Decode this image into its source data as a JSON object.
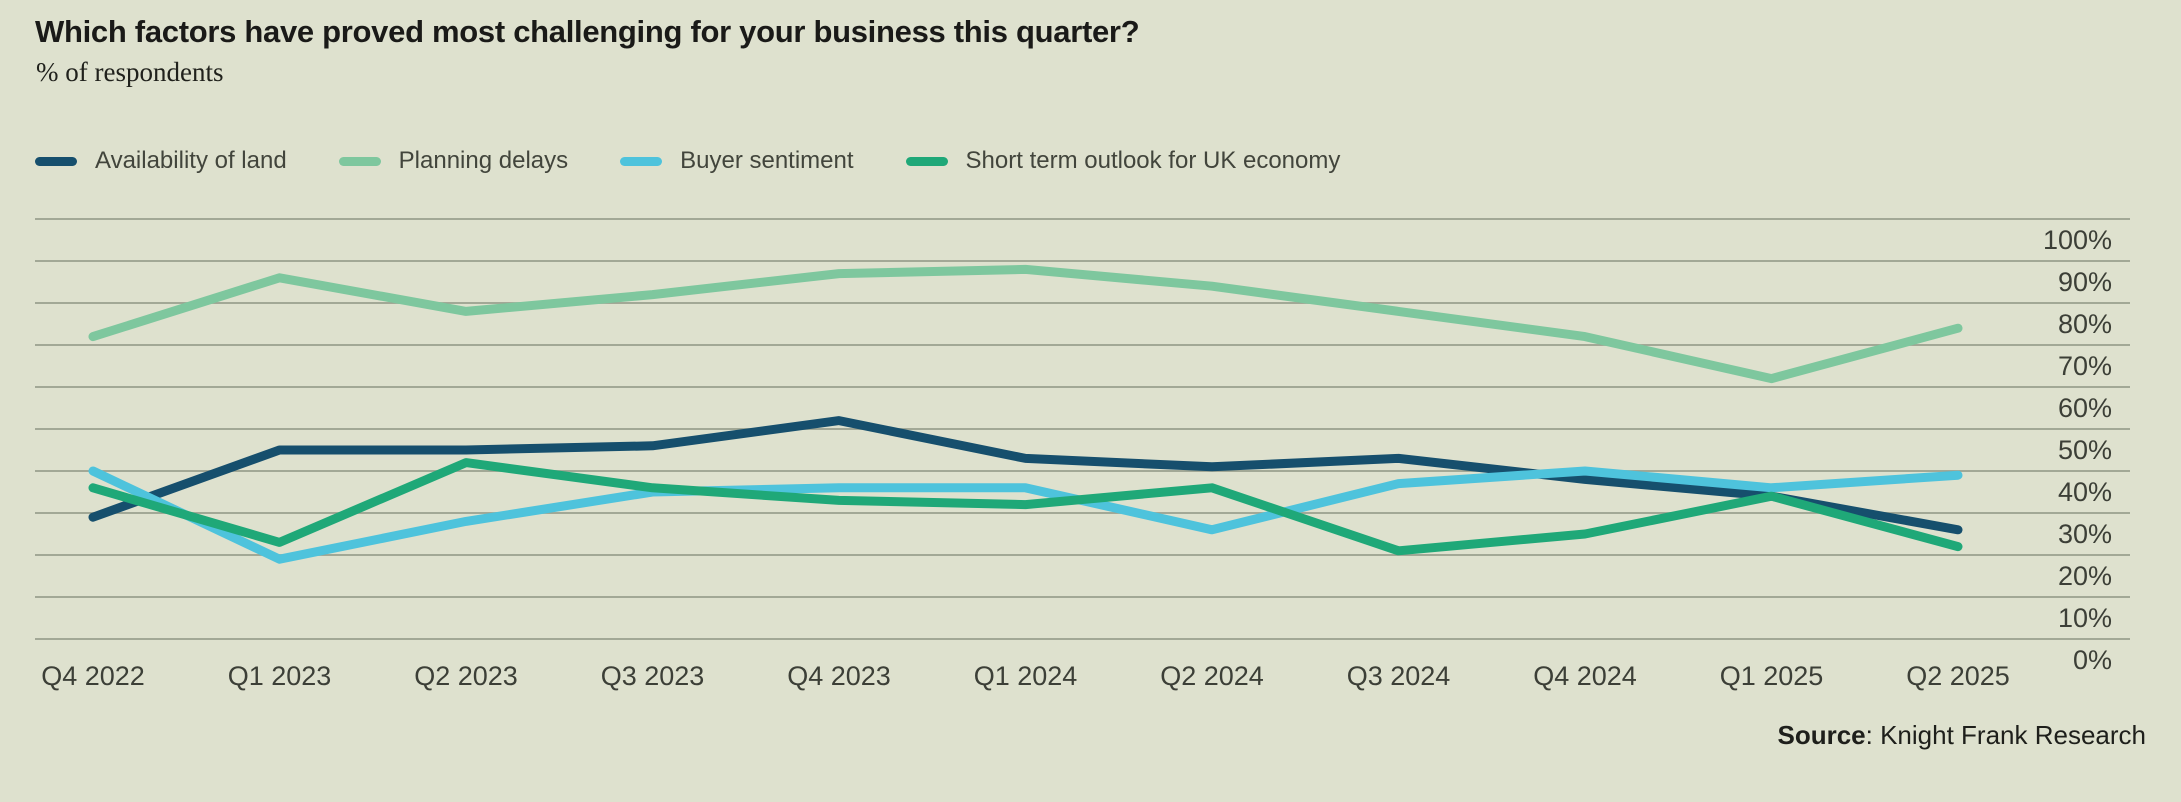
{
  "header": {
    "title": "Which factors have proved most challenging for your business this quarter?",
    "subtitle": "% of respondents"
  },
  "chart_data": {
    "type": "line",
    "title": "Which factors have proved most challenging for your business this quarter?",
    "subtitle": "% of respondents",
    "categories": [
      "Q4 2022",
      "Q1 2023",
      "Q2 2023",
      "Q3 2023",
      "Q4 2023",
      "Q1 2024",
      "Q2 2024",
      "Q3 2024",
      "Q4 2024",
      "Q1 2025",
      "Q2 2025"
    ],
    "series": [
      {
        "name": "Availability of land",
        "color": "#164f6d",
        "values": [
          29,
          45,
          45,
          46,
          52,
          43,
          41,
          43,
          38,
          34,
          26
        ]
      },
      {
        "name": "Planning delays",
        "color": "#7ec79e",
        "values": [
          72,
          86,
          78,
          82,
          87,
          88,
          84,
          78,
          72,
          62,
          74
        ]
      },
      {
        "name": "Buyer sentiment",
        "color": "#4ec3dc",
        "values": [
          40,
          19,
          28,
          35,
          36,
          36,
          26,
          37,
          40,
          36,
          39
        ]
      },
      {
        "name": "Short term outlook for UK economy",
        "color": "#1fa878",
        "values": [
          36,
          23,
          42,
          36,
          33,
          32,
          36,
          21,
          25,
          34,
          22
        ]
      }
    ],
    "ylim": [
      0,
      100
    ],
    "y_tick_step": 10,
    "y_ticks": [
      "100%",
      "90%",
      "80%",
      "70%",
      "60%",
      "50%",
      "40%",
      "30%",
      "20%",
      "10%",
      "0%"
    ],
    "grid": true,
    "grid_color": "#9aa08e",
    "legend_position": "top",
    "yaxis_side": "right",
    "xlabel": "",
    "ylabel": ""
  },
  "source": {
    "label": "Source",
    "rest": ": Knight Frank Research"
  }
}
